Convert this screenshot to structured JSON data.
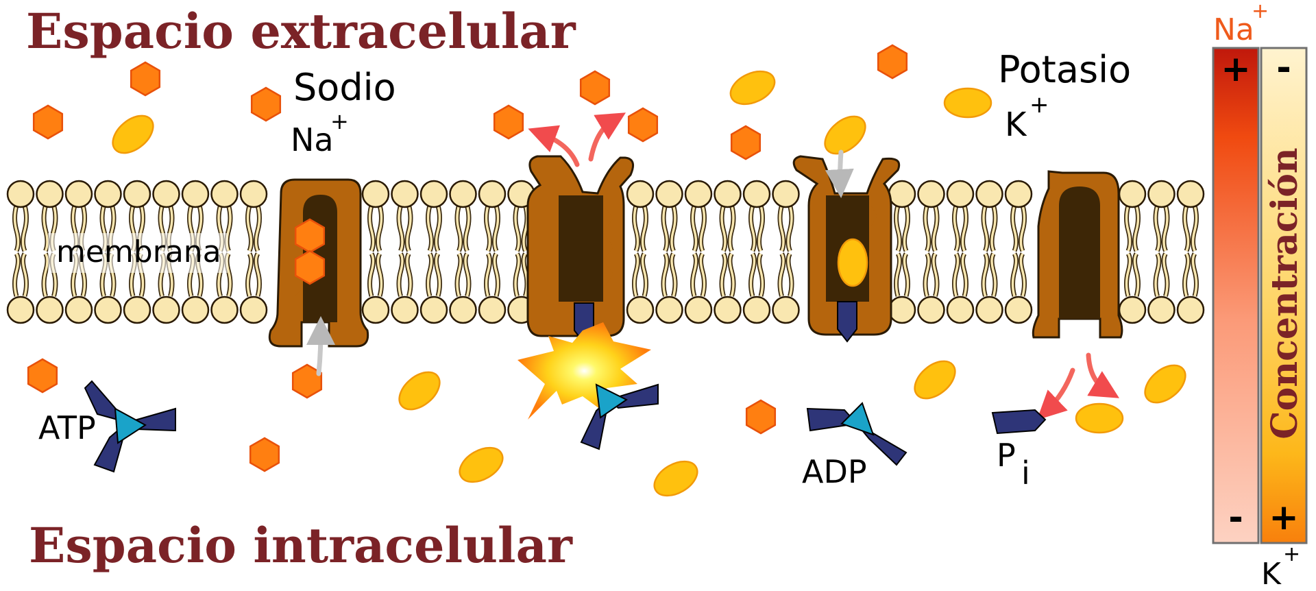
{
  "titles": {
    "extracellular": "Espacio extracelular",
    "intracellular": "Espacio intracelular"
  },
  "labels": {
    "sodium_name": "Sodio",
    "sodium_symbol": "Na",
    "sodium_charge": "+",
    "potassium_name": "Potasio",
    "potassium_symbol": "K",
    "potassium_charge": "+",
    "membrane": "membrana",
    "atp": "ATP",
    "adp": "ADP",
    "pi_letter": "P",
    "pi_sub": "i"
  },
  "gradient": {
    "title": "Concentración",
    "na_symbol": "Na",
    "na_charge": "+",
    "k_symbol": "K",
    "k_charge": "+",
    "na_top_sign": "+",
    "na_bottom_sign": "-",
    "k_top_sign": "-",
    "k_bottom_sign": "+"
  },
  "colors": {
    "title": "#7b2327",
    "sodium": "#ff7f11",
    "sodium_stroke": "#e8510a",
    "potassium": "#ffc10e",
    "potassium_stroke": "#f29a09",
    "protein_outer": "#b5650d",
    "protein_inner": "#3d2606",
    "lipid_head": "#f9e7b0",
    "atp": "#2e3578",
    "atp_core": "#1aa3c9",
    "na_label": "#ef5a1b"
  }
}
